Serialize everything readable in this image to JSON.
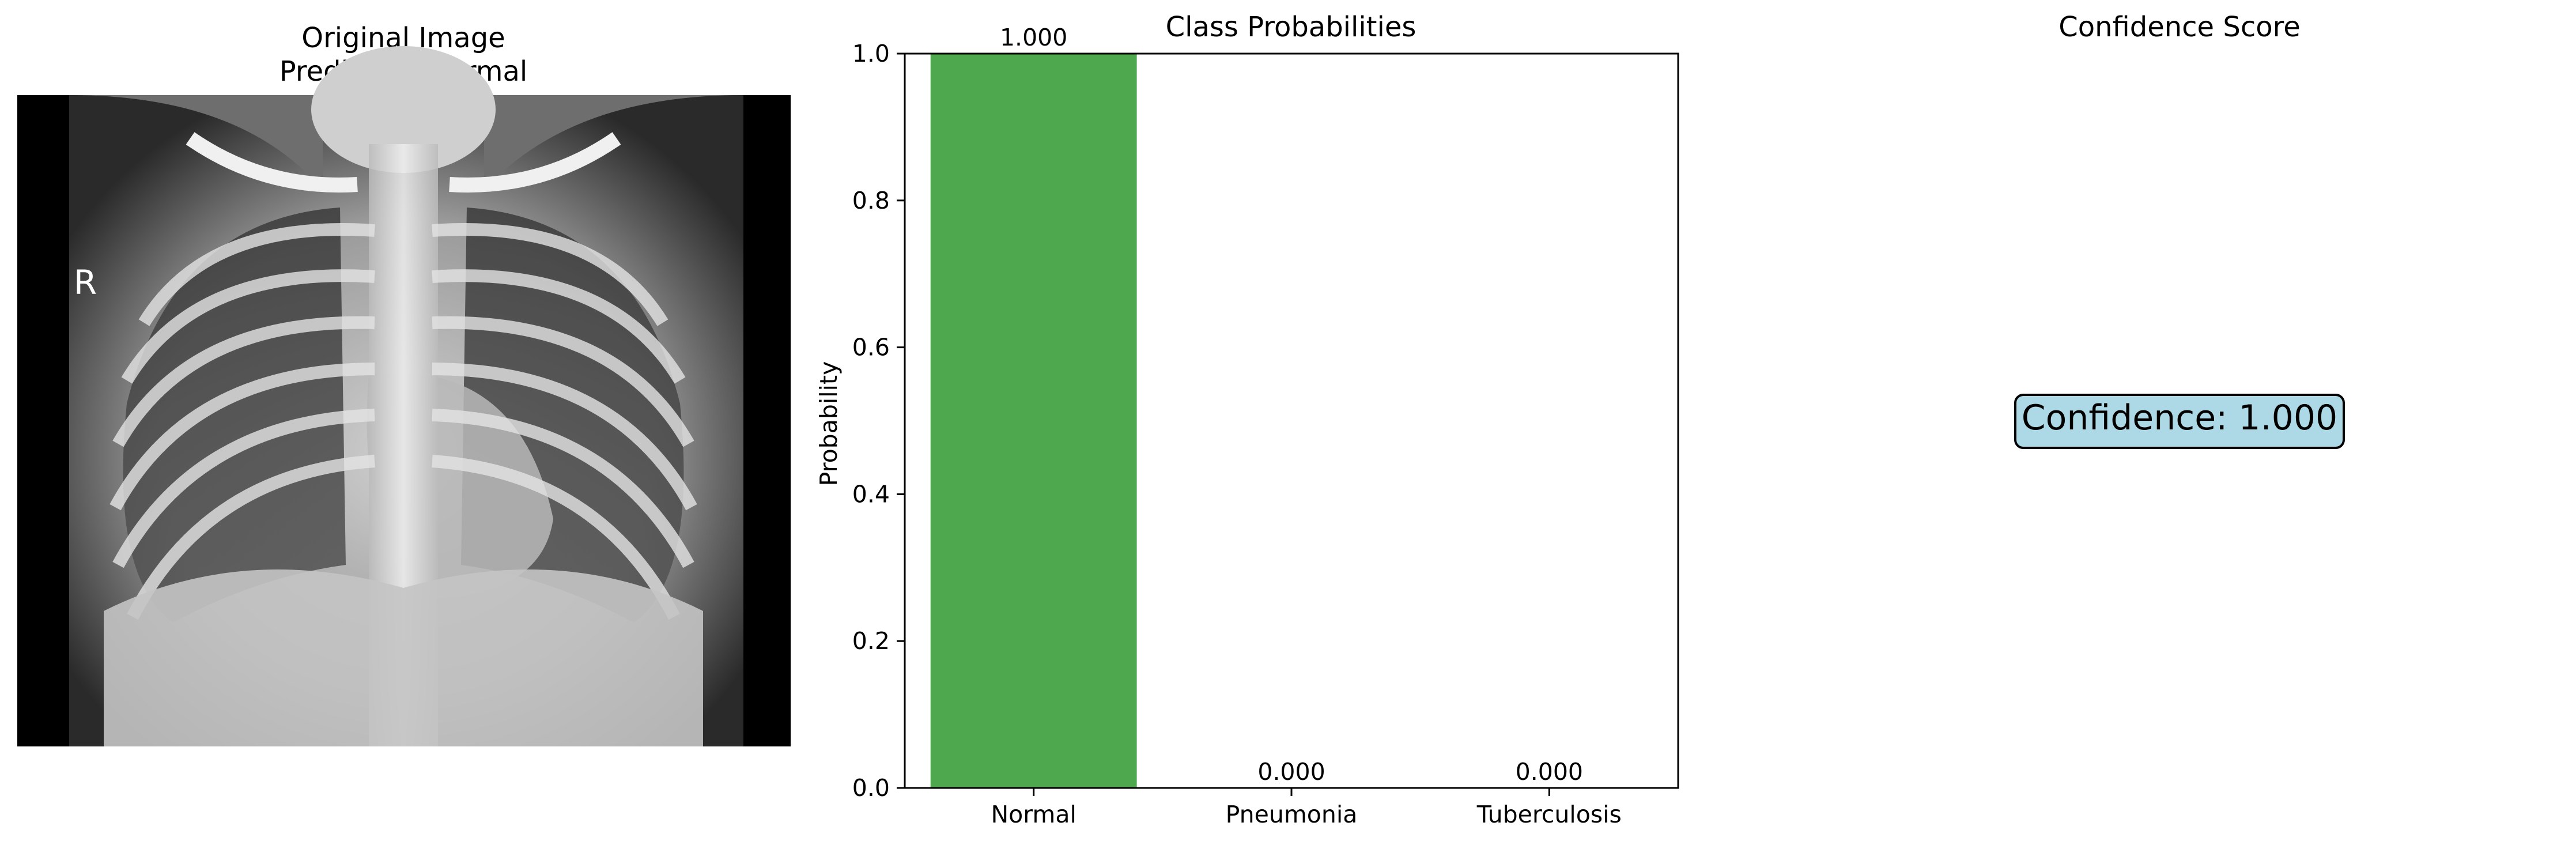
{
  "panels": {
    "image": {
      "title_line1": "Original Image",
      "title_line2": "Predicted: Normal",
      "xray_marker": "R"
    },
    "confidence": {
      "title": "Confidence Score",
      "box_text": "Confidence: 1.000",
      "box_color": "#add8e6"
    }
  },
  "chart_data": {
    "type": "bar",
    "title": "Class Probabilities",
    "xlabel": "",
    "ylabel": "Probability",
    "categories": [
      "Normal",
      "Pneumonia",
      "Tuberculosis"
    ],
    "values": [
      1.0,
      0.0,
      0.0
    ],
    "value_labels": [
      "1.000",
      "0.000",
      "0.000"
    ],
    "bar_color": "#4ea84e",
    "ylim": [
      0,
      1.0
    ],
    "yticks": [
      0.0,
      0.2,
      0.4,
      0.6,
      0.8,
      1.0
    ],
    "ytick_labels": [
      "0.0",
      "0.2",
      "0.4",
      "0.6",
      "0.8",
      "1.0"
    ],
    "grid": false
  }
}
